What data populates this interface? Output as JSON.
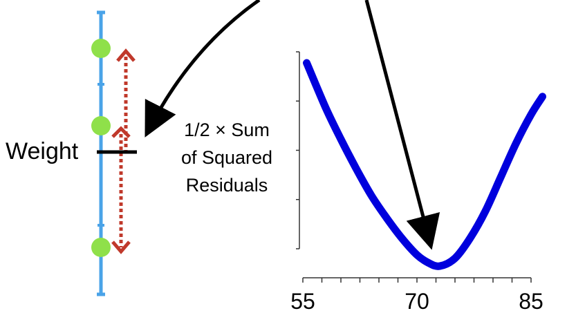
{
  "weight_label": "Weight",
  "y_axis_label": {
    "line1": "1/2 × Sum",
    "line2": "of Squared",
    "line3": "Residuals"
  },
  "number_line": {
    "line_color": "#4aa3e8",
    "point_color": "#8fe04a",
    "residual_arrow_color": "#c0392b",
    "estimate_marker_color": "#000000",
    "points": 3,
    "residual_arrows": 2
  },
  "chart_data": {
    "type": "line",
    "series_color": "#0000dd",
    "x": [
      55.5,
      58,
      60,
      62,
      64,
      66,
      68,
      70,
      71.5,
      73,
      75,
      77,
      79,
      81,
      83,
      85,
      86.5
    ],
    "y": [
      0.92,
      0.72,
      0.58,
      0.45,
      0.33,
      0.23,
      0.14,
      0.065,
      0.03,
      0.015,
      0.05,
      0.14,
      0.26,
      0.41,
      0.56,
      0.69,
      0.77
    ],
    "xlim": [
      55,
      85
    ],
    "ylim": [
      0,
      1
    ],
    "x_ticks": [
      "55",
      "70",
      "85"
    ],
    "x_tick_values": [
      55,
      70,
      85
    ],
    "minor_x_ticks": [
      55,
      57.5,
      60,
      62.5,
      65,
      67.5,
      70,
      72.5,
      75,
      77.5,
      80,
      82.5,
      85
    ],
    "y_ticks_count": 5,
    "minimum_x": 73
  }
}
